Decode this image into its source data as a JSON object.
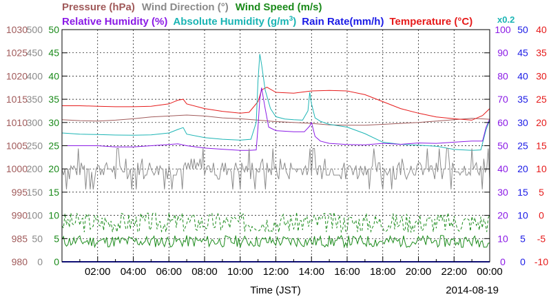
{
  "chart_data": {
    "type": "line",
    "date_label": "2014-08-19",
    "xlabel": "Time (JST)",
    "x_ticks": [
      "02:00",
      "04:00",
      "06:00",
      "08:00",
      "10:00",
      "12:00",
      "14:00",
      "16:00",
      "18:00",
      "20:00",
      "22:00",
      "00:00"
    ],
    "legend_row1": [
      {
        "text": "Pressure (hPa)",
        "color": "#a05a5a"
      },
      {
        "text": "Wind Direction (°)",
        "color": "#8a8a8a"
      },
      {
        "text": "Wind Speed (m/s)",
        "color": "#1a8a1a"
      }
    ],
    "legend_row2": [
      {
        "text": "Relative Humidity (%)",
        "color": "#8a1ae6"
      },
      {
        "text": "Absolute Humidity (g/m",
        "sup": "3",
        "tail": ")",
        "color": "#1ab4b4"
      },
      {
        "text": "Rain Rate(mm/h)",
        "color": "#1a1ae6"
      },
      {
        "text": "Temperature (°C)",
        "color": "#e61a1a"
      }
    ],
    "scale_note": "x0.2",
    "axes": {
      "pressure": {
        "color": "#a05a5a",
        "ticks": [
          "1030",
          "1025",
          "1020",
          "1015",
          "1010",
          "1005",
          "1000",
          "995",
          "990",
          "985",
          "980"
        ],
        "range": [
          980,
          1030
        ]
      },
      "wind_direction": {
        "color": "#8a8a8a",
        "ticks": [
          "500",
          "450",
          "400",
          "350",
          "300",
          "250",
          "200",
          "150",
          "100",
          "50",
          "0"
        ],
        "range": [
          0,
          500
        ]
      },
      "wind_speed": {
        "color": "#1a8a1a",
        "ticks": [
          "50",
          "45",
          "40",
          "35",
          "30",
          "25",
          "20",
          "15",
          "10",
          "5",
          "0"
        ],
        "range": [
          0,
          50
        ]
      },
      "relative_humidity": {
        "color": "#8a1ae6",
        "ticks": [
          "100",
          "90",
          "80",
          "70",
          "60",
          "50",
          "40",
          "30",
          "20",
          "10",
          "0"
        ],
        "range": [
          0,
          100
        ]
      },
      "rain_rate": {
        "color": "#1a1ae6",
        "ticks": [
          "50",
          "45",
          "40",
          "35",
          "30",
          "25",
          "20",
          "15",
          "10",
          "5",
          "0"
        ],
        "range": [
          0,
          50
        ]
      },
      "temperature": {
        "color": "#e61a1a",
        "ticks": [
          "40",
          "35",
          "30",
          "25",
          "20",
          "15",
          "10",
          "5",
          "0",
          "-5",
          "-10"
        ],
        "range": [
          -10,
          40
        ]
      }
    },
    "series": [
      {
        "key": "pressure",
        "color": "#a05a5a",
        "axis": "pressure",
        "x": [
          0,
          1,
          2,
          3,
          4,
          5,
          6,
          7,
          8,
          9,
          10,
          11,
          12,
          13,
          14,
          15,
          16,
          17,
          18,
          19,
          20,
          21,
          22,
          23,
          24
        ],
        "y": [
          1010.6,
          1010.4,
          1010.3,
          1010.5,
          1010.8,
          1011.2,
          1011.4,
          1011.6,
          1011.4,
          1011.0,
          1010.8,
          1010.5,
          1010.2,
          1010.0,
          1009.8,
          1009.5,
          1009.4,
          1009.4,
          1009.6,
          1009.8,
          1010.0,
          1010.3,
          1010.6,
          1010.9,
          1010.7
        ]
      },
      {
        "key": "temperature",
        "color": "#e61a1a",
        "axis": "temperature",
        "x": [
          0,
          1,
          2,
          3,
          4,
          5,
          6,
          6.5,
          6.8,
          7,
          8,
          9,
          10,
          10.5,
          11,
          11.2,
          11.5,
          12,
          13,
          14,
          15,
          16,
          17,
          18,
          19,
          20,
          21,
          22,
          23,
          23.6,
          24
        ],
        "y": [
          23.6,
          23.6,
          23.5,
          23.4,
          23.4,
          23.5,
          24.0,
          24.8,
          25.0,
          24.0,
          23.0,
          22.4,
          22.0,
          22.2,
          24.5,
          27.0,
          27.6,
          26.5,
          26.3,
          26.8,
          26.9,
          26.8,
          26.0,
          24.5,
          23.0,
          22.0,
          21.2,
          20.8,
          20.5,
          21.5,
          23.0
        ]
      },
      {
        "key": "absolute_humidity",
        "color": "#1ab4b4",
        "axis": "relative_humidity",
        "x": [
          0,
          1,
          2,
          3,
          4,
          5,
          6,
          6.5,
          6.8,
          7,
          8,
          9,
          10,
          10.6,
          10.9,
          11,
          11.1,
          11.2,
          11.4,
          11.7,
          12,
          12.5,
          13,
          13.5,
          13.8,
          13.9,
          14,
          14.2,
          14.5,
          15,
          16,
          17,
          18,
          19,
          20,
          21,
          22,
          23,
          23.5,
          23.8,
          24
        ],
        "y": [
          55.5,
          55.0,
          54.8,
          54.6,
          54.5,
          54.7,
          55.5,
          57.0,
          57.8,
          55.0,
          53.5,
          52.8,
          52.4,
          52.8,
          60.0,
          78.0,
          89.5,
          85.0,
          74.0,
          66.0,
          62.5,
          61.5,
          61.2,
          61.0,
          65.0,
          73.0,
          68.0,
          62.0,
          60.5,
          59.2,
          58.0,
          55.2,
          51.5,
          50.6,
          50.2,
          49.8,
          48.4,
          48.0,
          48.2,
          57.0,
          61.0
        ]
      },
      {
        "key": "relative_humidity",
        "color": "#8a1ae6",
        "axis": "relative_humidity",
        "x": [
          0,
          1,
          2,
          3,
          4,
          5,
          6,
          6.5,
          7,
          8,
          9,
          10,
          10.5,
          10.9,
          11.0,
          11.1,
          11.2,
          11.4,
          11.6,
          12,
          13,
          13.6,
          13.9,
          14.0,
          14.2,
          14.5,
          15,
          16,
          17,
          18,
          18.5,
          19,
          20,
          21,
          22,
          23,
          23.6,
          23.8,
          24
        ],
        "y": [
          50.0,
          50.0,
          50.0,
          49.5,
          49.5,
          50.0,
          50.5,
          50.8,
          50.0,
          49.0,
          48.5,
          48.0,
          48.0,
          48.2,
          58.0,
          70.0,
          75.0,
          66.0,
          58.0,
          56.5,
          56.0,
          56.0,
          58.5,
          60.0,
          54.0,
          52.0,
          51.0,
          50.5,
          50.4,
          51.0,
          50.8,
          50.6,
          51.2,
          51.0,
          51.5,
          52.0,
          52.0,
          58.0,
          61.5
        ]
      },
      {
        "key": "wind_direction",
        "color": "#8a8a8a",
        "axis": "wind_direction",
        "noisy": true,
        "base": 200,
        "amp": 22,
        "seed": 7
      },
      {
        "key": "wind_gust",
        "color": "#1a8a1a",
        "axis": "wind_speed",
        "dashed": true,
        "noisy": true,
        "base": 8.5,
        "amp": 2.2,
        "seed": 3
      },
      {
        "key": "wind_speed",
        "color": "#1a8a1a",
        "axis": "wind_speed",
        "noisy": true,
        "base": 4.4,
        "amp": 1.3,
        "seed": 11
      },
      {
        "key": "rain_rate",
        "color": "#1a1ae6",
        "axis": "rain_rate",
        "x": [
          0,
          24
        ],
        "y": [
          0,
          0
        ]
      }
    ],
    "grid": true
  }
}
